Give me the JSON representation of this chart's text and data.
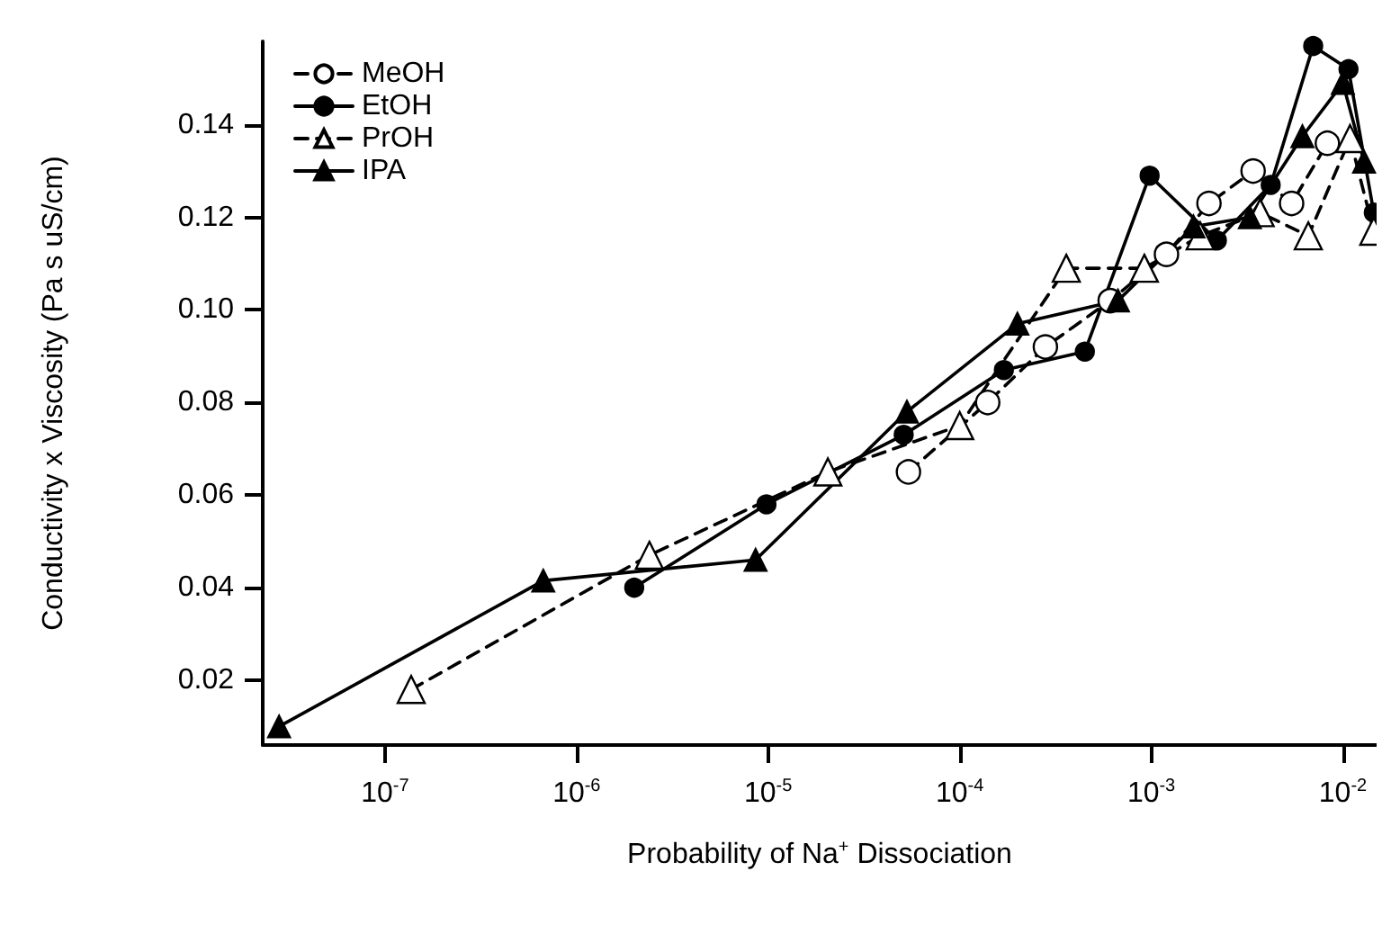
{
  "chart_data": {
    "type": "line",
    "xlabel": "Probability of Na$^{+}$ Dissociation",
    "ylabel": "Conductivity x Viscosity (Pa s uS/cm)",
    "log": "x",
    "xlim": [
      2.3e-08,
      0.015
    ],
    "xticks": [
      {
        "value": 1e-07,
        "label": "10$^{-7}$"
      },
      {
        "value": 1e-06,
        "label": "10$^{-6}$"
      },
      {
        "value": 1e-05,
        "label": "10$^{-5}$"
      },
      {
        "value": 0.0001,
        "label": "10$^{-4}$"
      },
      {
        "value": 0.001,
        "label": "10$^{-3}$"
      },
      {
        "value": 0.01,
        "label": "10$^{-2}$"
      }
    ],
    "ylim": [
      0.006,
      0.158
    ],
    "yticks": [
      0.02,
      0.04,
      0.06,
      0.08,
      {
        "value": 0.1,
        "label": "0.10"
      },
      0.12,
      0.14
    ],
    "grid": false,
    "legend": "top left",
    "series": [
      {
        "name": "MeOH",
        "color": "#000000",
        "marker": "circle",
        "line_style": "dashed",
        "x": [
          5.4e-05,
          0.00014,
          0.00028,
          0.00061,
          0.0012,
          0.002,
          0.0034,
          0.0054,
          0.0083
        ],
        "values": [
          0.065,
          0.08,
          0.092,
          0.102,
          0.112,
          0.123,
          0.13,
          0.123,
          0.136
        ]
      },
      {
        "name": "EtOH",
        "color": "#000000",
        "marker": "circle",
        "line_style": "solid",
        "x": [
          2e-06,
          9.8e-06,
          5.1e-05,
          0.00017,
          0.00045,
          0.00098,
          0.0022,
          0.0042,
          0.007,
          0.0107,
          0.0145
        ],
        "values": [
          0.04,
          0.058,
          0.073,
          0.087,
          0.091,
          0.129,
          0.115,
          0.127,
          0.157,
          0.152,
          0.121
        ]
      },
      {
        "name": "PrOH",
        "color": "#000000",
        "marker": "triangle",
        "line_style": "dashed",
        "x": [
          1.37e-07,
          2.4e-06,
          2.05e-05,
          0.0001,
          0.00036,
          0.00092,
          0.0018,
          0.0037,
          0.0066,
          0.0109,
          0.0145
        ],
        "values": [
          0.018,
          0.047,
          0.065,
          0.075,
          0.109,
          0.109,
          0.116,
          0.121,
          0.116,
          0.137,
          0.117
        ]
      },
      {
        "name": "IPA",
        "color": "#000000",
        "marker": "triangle",
        "line_style": "solid",
        "x": [
          2.8e-08,
          6.7e-07,
          8.6e-06,
          5.3e-05,
          0.0002,
          0.00067,
          0.00166,
          0.00327,
          0.00615,
          0.01,
          0.0129
        ],
        "values": [
          0.01,
          0.0415,
          0.046,
          0.078,
          0.097,
          0.102,
          0.118,
          0.12,
          0.1375,
          0.149,
          0.132
        ]
      }
    ]
  }
}
